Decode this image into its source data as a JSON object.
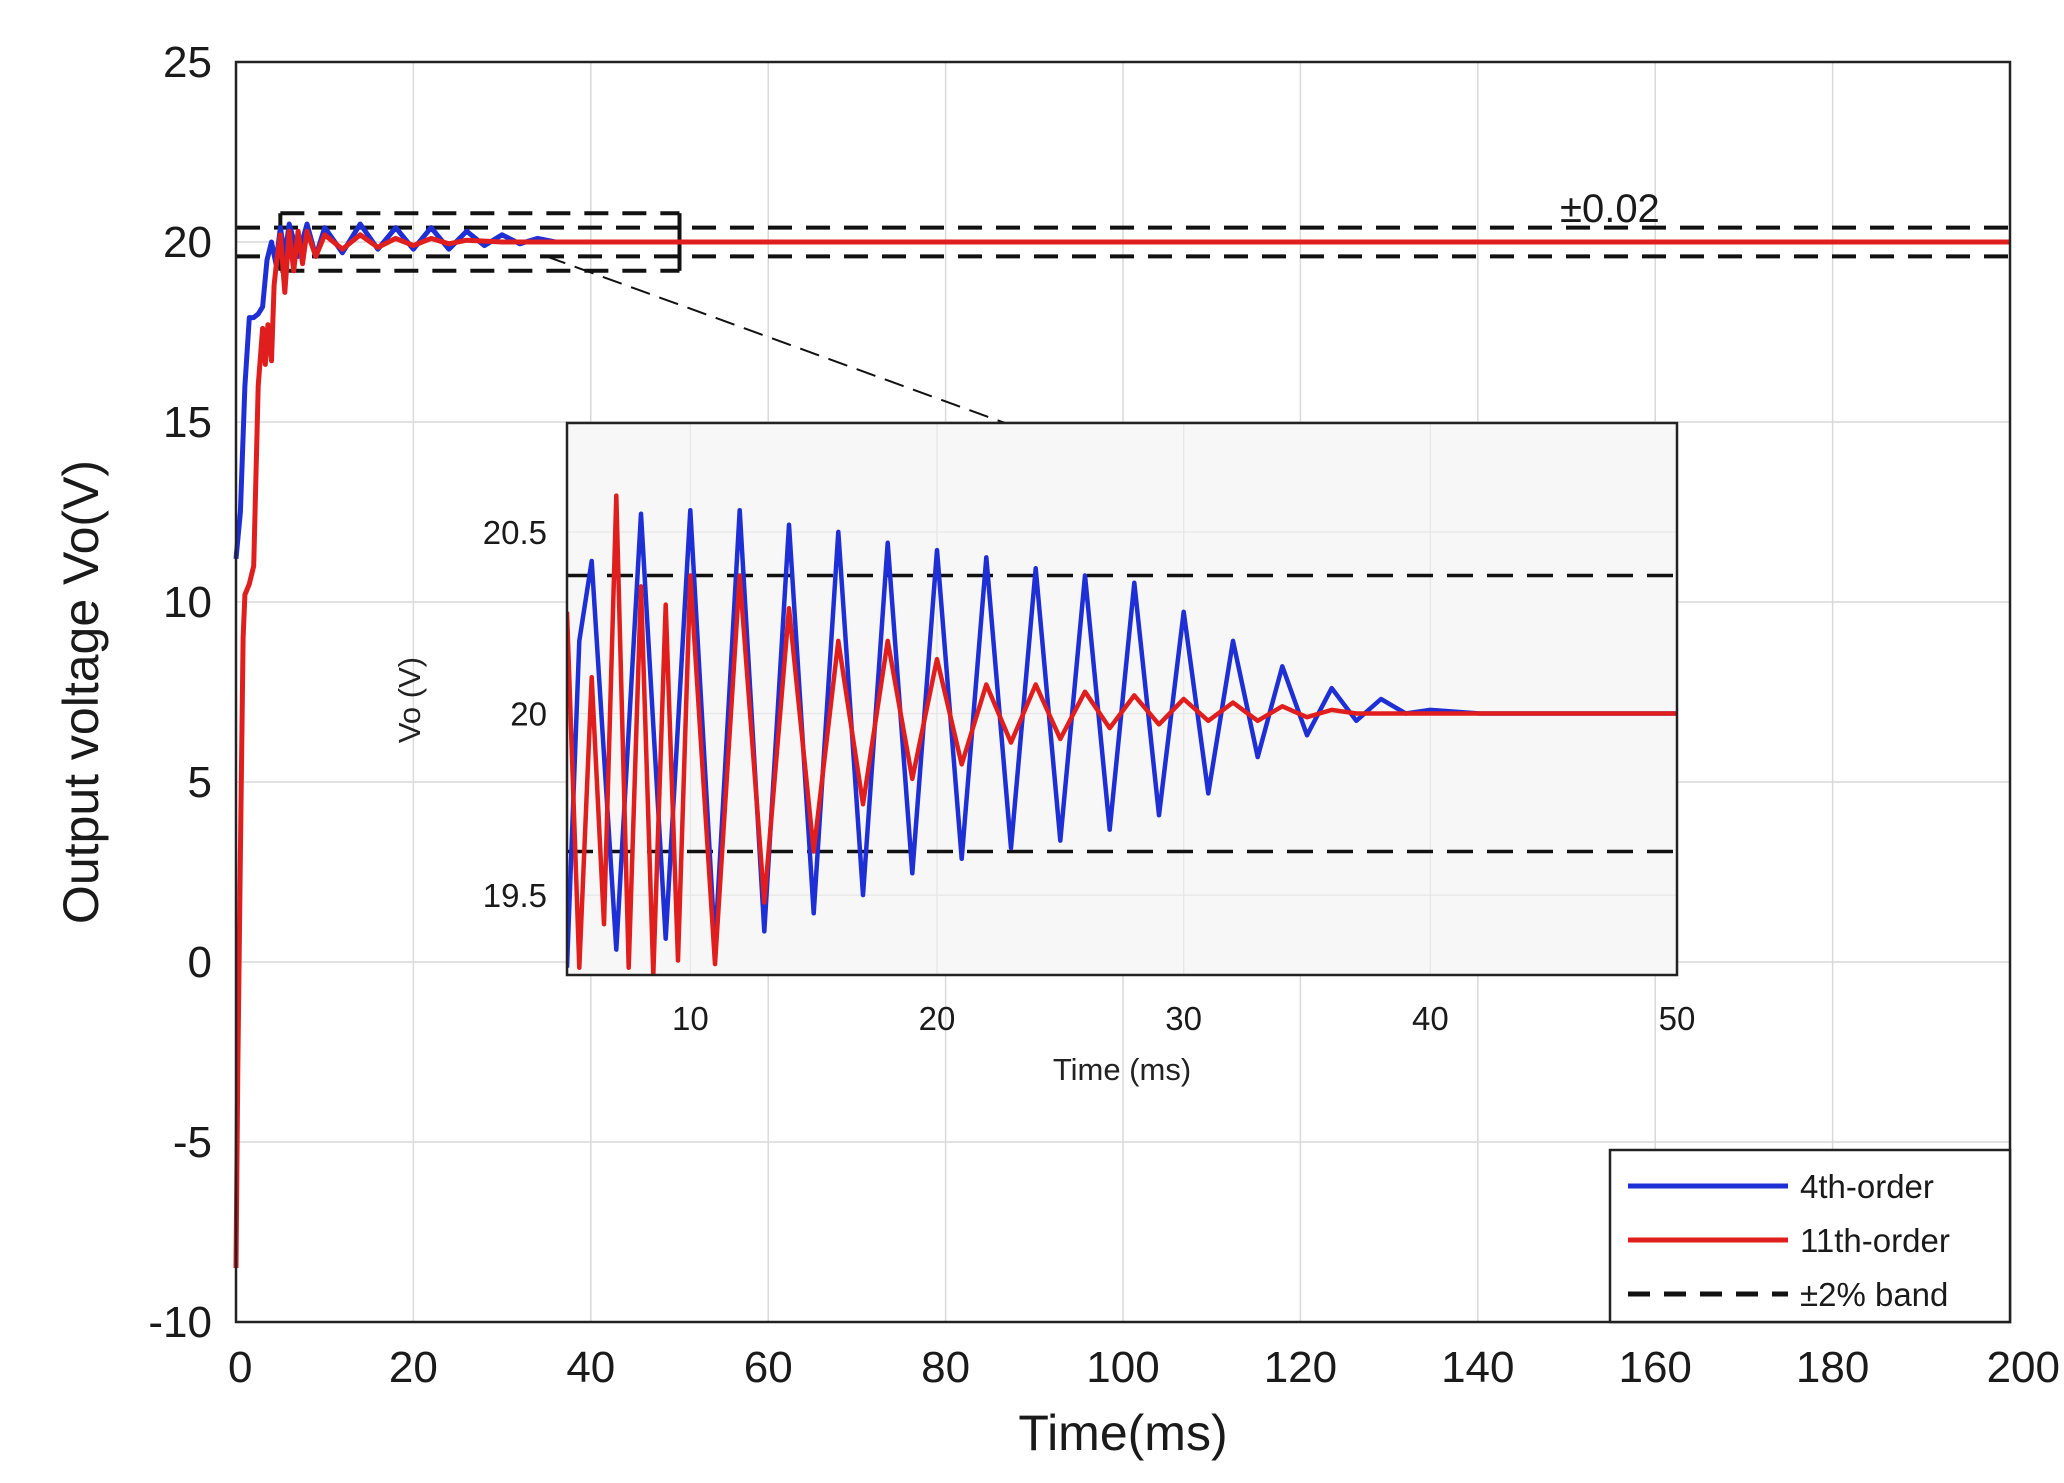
{
  "chart_data": {
    "type": "line",
    "main": {
      "xlabel": "Time(ms)",
      "ylabel": "Output voltage Vo(V)",
      "xlim": [
        0,
        200
      ],
      "ylim": [
        -10,
        25
      ],
      "xticks": [
        0,
        20,
        40,
        60,
        80,
        100,
        120,
        140,
        160,
        180,
        200
      ],
      "yticks": [
        -10,
        -5,
        0,
        5,
        10,
        15,
        20,
        25
      ],
      "grid": true,
      "annotation": "±0.02",
      "series": [
        {
          "name": "4th-order",
          "color": "#1f2fd6",
          "x": [
            0,
            0.5,
            1,
            1.5,
            2,
            2.5,
            3,
            3.5,
            4,
            4.5,
            5,
            5.5,
            6,
            7,
            8,
            9,
            10,
            12,
            14,
            16,
            18,
            20,
            22,
            24,
            26,
            28,
            30,
            32,
            34,
            36,
            40,
            50,
            100,
            150,
            200
          ],
          "y": [
            11.2,
            12.5,
            16.0,
            17.9,
            17.9,
            18.0,
            18.2,
            19.5,
            20.0,
            19.4,
            20.4,
            19.6,
            20.5,
            19.6,
            20.5,
            19.6,
            20.4,
            19.7,
            20.5,
            19.8,
            20.4,
            19.8,
            20.4,
            19.8,
            20.3,
            19.9,
            20.2,
            19.95,
            20.1,
            20.0,
            20.0,
            20.0,
            20.0,
            20.0,
            20.0
          ]
        },
        {
          "name": "11th-order",
          "color": "#e01e1e",
          "x": [
            0,
            0.2,
            0.5,
            0.8,
            1,
            1.5,
            2,
            2.5,
            3,
            3.3,
            3.6,
            4,
            4.3,
            4.6,
            5,
            5.5,
            6,
            6.5,
            7,
            7.5,
            8,
            9,
            10,
            12,
            14,
            16,
            18,
            20,
            22,
            24,
            26,
            30,
            35,
            40,
            50,
            100,
            150,
            200
          ],
          "y": [
            -8.5,
            -3.0,
            3.0,
            9.0,
            10.2,
            10.5,
            11.0,
            16.0,
            17.6,
            16.6,
            17.7,
            16.7,
            18.8,
            19.5,
            20.2,
            18.6,
            20.3,
            19.2,
            20.3,
            19.4,
            20.3,
            19.6,
            20.2,
            19.8,
            20.2,
            19.85,
            20.1,
            19.9,
            20.1,
            19.95,
            20.05,
            20.0,
            20.0,
            20.0,
            20.0,
            20.0,
            20.0,
            20.0
          ]
        }
      ],
      "band": {
        "name": "±2% band",
        "upper": 20.4,
        "lower": 19.6
      },
      "zoom_box": {
        "x": [
          5,
          50
        ],
        "y": [
          19.2,
          20.8
        ]
      }
    },
    "inset": {
      "xlabel": "Time (ms)",
      "ylabel": "Vo (V)",
      "xlim": [
        5,
        50
      ],
      "ylim": [
        19.28,
        20.8
      ],
      "xticks": [
        10,
        20,
        30,
        40,
        50
      ],
      "yticks": [
        19.5,
        20,
        20.5
      ],
      "ytick_labels": [
        "19.5",
        "20",
        "20.5"
      ],
      "band": {
        "upper": 20.38,
        "lower": 19.62
      },
      "series": [
        {
          "name": "4th-order",
          "color": "#1f2fd6",
          "x": [
            5,
            5.5,
            6,
            7,
            8,
            9,
            10,
            11,
            12,
            13,
            14,
            15,
            16,
            17,
            18,
            19,
            20,
            21,
            22,
            23,
            24,
            25,
            26,
            27,
            28,
            29,
            30,
            31,
            32,
            33,
            34,
            35,
            36,
            37,
            38,
            39,
            40,
            42,
            45,
            50
          ],
          "y": [
            19.3,
            20.2,
            20.42,
            19.35,
            20.55,
            19.38,
            20.56,
            19.36,
            20.56,
            19.4,
            20.52,
            19.45,
            20.5,
            19.5,
            20.47,
            19.56,
            20.45,
            19.6,
            20.43,
            19.63,
            20.4,
            19.65,
            20.38,
            19.68,
            20.36,
            19.72,
            20.28,
            19.78,
            20.2,
            19.88,
            20.13,
            19.94,
            20.07,
            19.98,
            20.04,
            20.0,
            20.01,
            20.0,
            20.0,
            20.0
          ]
        },
        {
          "name": "11th-order",
          "color": "#e01e1e",
          "x": [
            5,
            5.5,
            6,
            6.5,
            7,
            7.5,
            8,
            8.5,
            9,
            9.5,
            10,
            11,
            12,
            13,
            14,
            15,
            16,
            17,
            18,
            19,
            20,
            21,
            22,
            23,
            24,
            25,
            26,
            27,
            28,
            29,
            30,
            31,
            32,
            33,
            34,
            35,
            36,
            37,
            38,
            40,
            45,
            50
          ],
          "y": [
            20.28,
            19.3,
            20.1,
            19.42,
            20.6,
            19.3,
            20.35,
            19.28,
            20.3,
            19.32,
            20.38,
            19.31,
            20.38,
            19.48,
            20.29,
            19.62,
            20.2,
            19.75,
            20.2,
            19.82,
            20.15,
            19.86,
            20.08,
            19.92,
            20.08,
            19.93,
            20.06,
            19.96,
            20.05,
            19.97,
            20.04,
            19.98,
            20.03,
            19.98,
            20.02,
            19.99,
            20.01,
            20.0,
            20.0,
            20.0,
            20.0,
            20.0
          ]
        }
      ]
    },
    "legend": {
      "position": "bottom-right",
      "entries": [
        {
          "label": "4th-order",
          "color": "#1f2fd6",
          "style": "solid"
        },
        {
          "label": "11th-order",
          "color": "#e01e1e",
          "style": "solid"
        },
        {
          "label": "±2% band",
          "color": "#111111",
          "style": "dashed"
        }
      ]
    }
  }
}
